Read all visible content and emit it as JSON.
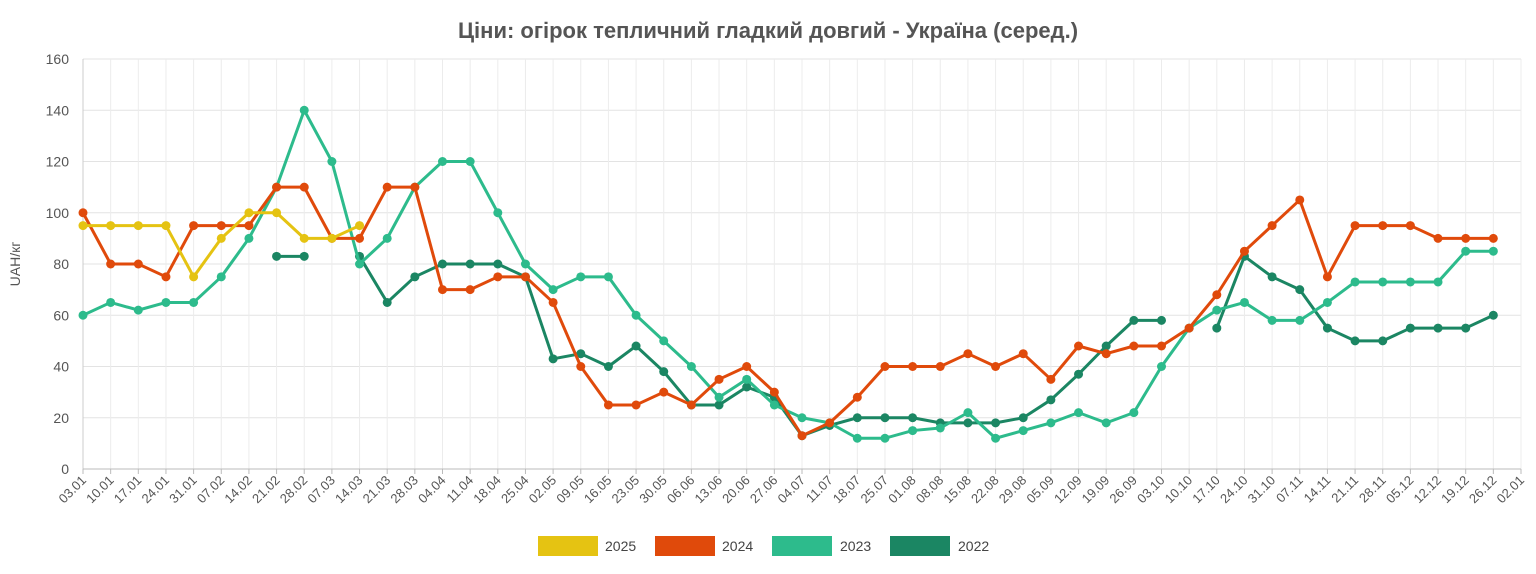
{
  "chart_data": {
    "type": "line",
    "title": "Ціни: огірок тепличний гладкий довгий - Україна (серед.)",
    "xlabel": "",
    "ylabel": "UAH/кг",
    "ylim": [
      0,
      160
    ],
    "yticks": [
      "0",
      "20",
      "40",
      "60",
      "80",
      "100",
      "120",
      "140",
      "160"
    ],
    "categories": [
      "03.01",
      "10.01",
      "17.01",
      "24.01",
      "31.01",
      "07.02",
      "14.02",
      "21.02",
      "28.02",
      "07.03",
      "14.03",
      "21.03",
      "28.03",
      "04.04",
      "11.04",
      "18.04",
      "25.04",
      "02.05",
      "09.05",
      "16.05",
      "23.05",
      "30.05",
      "06.06",
      "13.06",
      "20.06",
      "27.06",
      "04.07",
      "11.07",
      "18.07",
      "25.07",
      "01.08",
      "08.08",
      "15.08",
      "22.08",
      "29.08",
      "05.09",
      "12.09",
      "19.09",
      "26.09",
      "03.10",
      "10.10",
      "17.10",
      "24.10",
      "31.10",
      "07.11",
      "14.11",
      "21.11",
      "28.11",
      "05.12",
      "12.12",
      "19.12",
      "26.12",
      "02.01"
    ],
    "grid": true,
    "legend": "bottom",
    "series": [
      {
        "name": "2025",
        "color": "#e5c312",
        "values": [
          95,
          95,
          95,
          95,
          75,
          90,
          100,
          100,
          90,
          90,
          95,
          null,
          null,
          null,
          null,
          null,
          null,
          null,
          null,
          null,
          null,
          null,
          null,
          null,
          null,
          null,
          null,
          null,
          null,
          null,
          null,
          null,
          null,
          null,
          null,
          null,
          null,
          null,
          null,
          null,
          null,
          null,
          null,
          null,
          null,
          null,
          null,
          null,
          null,
          null,
          null,
          null,
          null
        ]
      },
      {
        "name": "2024",
        "color": "#e04a0b",
        "values": [
          100,
          80,
          80,
          75,
          95,
          95,
          95,
          110,
          110,
          90,
          90,
          110,
          110,
          70,
          70,
          75,
          75,
          65,
          40,
          25,
          25,
          30,
          25,
          35,
          40,
          30,
          13,
          18,
          28,
          40,
          40,
          40,
          45,
          40,
          45,
          35,
          48,
          45,
          48,
          48,
          55,
          68,
          85,
          95,
          105,
          75,
          95,
          95,
          95,
          90,
          90,
          90,
          null
        ]
      },
      {
        "name": "2023",
        "color": "#2dbb8c",
        "values": [
          60,
          65,
          62,
          65,
          65,
          75,
          90,
          110,
          140,
          120,
          80,
          90,
          110,
          120,
          120,
          100,
          80,
          70,
          75,
          75,
          60,
          50,
          40,
          28,
          35,
          25,
          20,
          18,
          12,
          12,
          15,
          16,
          22,
          12,
          15,
          18,
          22,
          18,
          22,
          40,
          55,
          62,
          65,
          58,
          58,
          65,
          73,
          73,
          73,
          73,
          85,
          85,
          null
        ]
      },
      {
        "name": "2022",
        "color": "#1b8663",
        "values": [
          null,
          null,
          null,
          null,
          null,
          null,
          null,
          83,
          83,
          null,
          83,
          65,
          75,
          80,
          80,
          80,
          75,
          43,
          45,
          40,
          48,
          38,
          25,
          25,
          32,
          28,
          13,
          17,
          20,
          20,
          20,
          18,
          18,
          18,
          20,
          27,
          37,
          48,
          58,
          58,
          null,
          55,
          83,
          75,
          70,
          55,
          50,
          50,
          55,
          55,
          55,
          60,
          null
        ]
      }
    ]
  }
}
